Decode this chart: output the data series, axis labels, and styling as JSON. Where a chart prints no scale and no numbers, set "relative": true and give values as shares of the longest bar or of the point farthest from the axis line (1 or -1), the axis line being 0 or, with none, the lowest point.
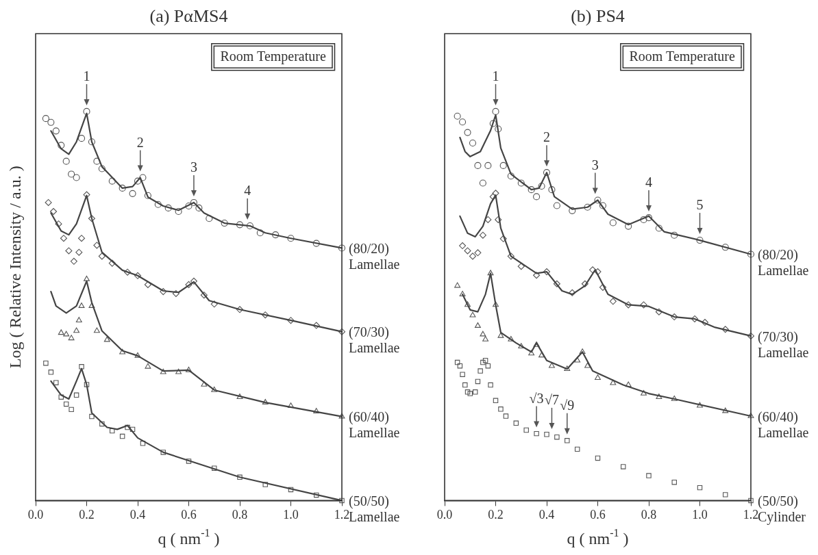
{
  "chart_data": [
    {
      "type": "line",
      "title": "(a) PαMS4",
      "xlabel": "q ( nm$^{-1}$ )",
      "ylabel": "Log ( Relative Intensity / a.u. )",
      "relative": true,
      "xlim": [
        0,
        1.2
      ],
      "xticks": [
        {
          "value": 0,
          "label": "0.0"
        },
        {
          "value": 0.2,
          "label": "0.2"
        },
        {
          "value": 0.4,
          "label": "0.4"
        },
        {
          "value": 0.6,
          "label": "0.6"
        },
        {
          "value": 0.8,
          "label": "0.8"
        },
        {
          "value": 1,
          "label": "1.0"
        },
        {
          "value": 1.2,
          "label": "1.2"
        }
      ],
      "series": [
        {
          "type": "scatter",
          "name": "(80/20) Lamellae",
          "color": "#555555",
          "marker": "circle",
          "x": [
            0.04,
            0.06,
            0.08,
            0.1,
            0.12,
            0.14,
            0.16,
            0.18,
            0.2,
            0.22,
            0.24,
            0.26,
            0.3,
            0.34,
            0.38,
            0.4,
            0.42,
            0.44,
            0.48,
            0.52,
            0.56,
            0.6,
            0.62,
            0.64,
            0.68,
            0.74,
            0.8,
            0.84,
            0.88,
            0.94,
            1.0,
            1.1,
            1.2
          ],
          "values": [
            0.982,
            0.972,
            0.95,
            0.913,
            0.872,
            0.839,
            0.83,
            0.931,
            1,
            0.922,
            0.872,
            0.853,
            0.821,
            0.803,
            0.789,
            0.821,
            0.83,
            0.784,
            0.761,
            0.752,
            0.743,
            0.757,
            0.766,
            0.752,
            0.725,
            0.713,
            0.709,
            0.706,
            0.688,
            0.683,
            0.674,
            0.661,
            0.649
          ]
        },
        {
          "type": "line",
          "color": "#444444",
          "marker": "none",
          "x": [
            0.06,
            0.1,
            0.13,
            0.16,
            0.19,
            0.2,
            0.22,
            0.26,
            0.34,
            0.38,
            0.41,
            0.44,
            0.5,
            0.56,
            0.62,
            0.66,
            0.74,
            0.84,
            0.9,
            1.0,
            1.2
          ],
          "values": [
            0.95,
            0.904,
            0.89,
            0.922,
            0.977,
            0.995,
            0.922,
            0.858,
            0.803,
            0.807,
            0.83,
            0.78,
            0.757,
            0.746,
            0.766,
            0.739,
            0.713,
            0.706,
            0.688,
            0.674,
            0.649
          ]
        },
        {
          "type": "scatter",
          "name": "(70/30) Lamellae",
          "color": "#555555",
          "marker": "diamond",
          "x": [
            0.05,
            0.07,
            0.09,
            0.11,
            0.13,
            0.15,
            0.17,
            0.18,
            0.2,
            0.22,
            0.24,
            0.26,
            0.3,
            0.36,
            0.4,
            0.44,
            0.5,
            0.55,
            0.6,
            0.62,
            0.66,
            0.7,
            0.8,
            0.9,
            1.0,
            1.1,
            1.2
          ],
          "values": [
            0.766,
            0.743,
            0.711,
            0.674,
            0.642,
            0.615,
            0.638,
            0.674,
            0.786,
            0.725,
            0.656,
            0.628,
            0.61,
            0.587,
            0.578,
            0.555,
            0.537,
            0.532,
            0.555,
            0.564,
            0.528,
            0.505,
            0.491,
            0.477,
            0.463,
            0.45,
            0.434
          ]
        },
        {
          "type": "line",
          "color": "#444444",
          "marker": "none",
          "x": [
            0.06,
            0.1,
            0.13,
            0.16,
            0.2,
            0.22,
            0.26,
            0.34,
            0.4,
            0.5,
            0.56,
            0.62,
            0.68,
            0.8,
            1.0,
            1.2
          ],
          "values": [
            0.739,
            0.693,
            0.683,
            0.711,
            0.784,
            0.725,
            0.638,
            0.592,
            0.578,
            0.539,
            0.535,
            0.562,
            0.514,
            0.491,
            0.463,
            0.434
          ]
        },
        {
          "type": "scatter",
          "name": "(60/40) Lamellae",
          "color": "#555555",
          "marker": "triangle",
          "x": [
            0.1,
            0.12,
            0.14,
            0.16,
            0.17,
            0.18,
            0.2,
            0.22,
            0.24,
            0.28,
            0.34,
            0.4,
            0.44,
            0.5,
            0.56,
            0.6,
            0.66,
            0.7,
            0.8,
            0.9,
            1.0,
            1.1,
            1.2
          ],
          "values": [
            0.431,
            0.427,
            0.417,
            0.436,
            0.463,
            0.5,
            0.569,
            0.5,
            0.436,
            0.413,
            0.381,
            0.372,
            0.344,
            0.33,
            0.33,
            0.335,
            0.298,
            0.284,
            0.266,
            0.252,
            0.243,
            0.229,
            0.216
          ]
        },
        {
          "type": "line",
          "color": "#444444",
          "marker": "none",
          "x": [
            0.06,
            0.08,
            0.12,
            0.16,
            0.2,
            0.22,
            0.26,
            0.34,
            0.4,
            0.5,
            0.6,
            0.7,
            0.9,
            1.2
          ],
          "values": [
            0.537,
            0.5,
            0.482,
            0.5,
            0.564,
            0.509,
            0.436,
            0.385,
            0.372,
            0.333,
            0.335,
            0.284,
            0.252,
            0.216
          ]
        },
        {
          "type": "scatter",
          "name": "(50/50) Lamellae",
          "color": "#555555",
          "marker": "square",
          "x": [
            0.04,
            0.06,
            0.08,
            0.1,
            0.12,
            0.14,
            0.16,
            0.18,
            0.2,
            0.22,
            0.26,
            0.3,
            0.34,
            0.36,
            0.38,
            0.42,
            0.5,
            0.6,
            0.7,
            0.8,
            0.9,
            1.0,
            1.1,
            1.2
          ],
          "values": [
            0.353,
            0.33,
            0.303,
            0.266,
            0.248,
            0.234,
            0.271,
            0.344,
            0.298,
            0.216,
            0.197,
            0.179,
            0.165,
            0.188,
            0.183,
            0.147,
            0.124,
            0.101,
            0.083,
            0.06,
            0.041,
            0.028,
            0.014,
            0
          ]
        },
        {
          "type": "line",
          "color": "#444444",
          "marker": "none",
          "x": [
            0.06,
            0.1,
            0.13,
            0.16,
            0.18,
            0.2,
            0.22,
            0.28,
            0.32,
            0.36,
            0.4,
            0.5,
            0.8,
            1.2
          ],
          "values": [
            0.307,
            0.271,
            0.261,
            0.307,
            0.339,
            0.298,
            0.225,
            0.188,
            0.183,
            0.193,
            0.161,
            0.124,
            0.06,
            0
          ]
        }
      ],
      "annotations": [
        "Room Temperature",
        {
          "text": "1",
          "x": 0.2,
          "y": 1
        },
        {
          "text": "2",
          "x": 0.41,
          "y": 0.83
        },
        {
          "text": "3",
          "x": 0.62,
          "y": 0.766
        },
        {
          "text": "4",
          "x": 0.83,
          "y": 0.706
        }
      ]
    },
    {
      "type": "line",
      "title": "(b) PS4",
      "xlabel": "q ( nm$^{-1}$ )",
      "relative": true,
      "xlim": [
        0,
        1.2
      ],
      "xticks": [
        {
          "value": 0,
          "label": "0.0"
        },
        {
          "value": 0.2,
          "label": "0.2"
        },
        {
          "value": 0.4,
          "label": "0.4"
        },
        {
          "value": 0.6,
          "label": "0.6"
        },
        {
          "value": 0.8,
          "label": "0.8"
        },
        {
          "value": 1,
          "label": "1.0"
        },
        {
          "value": 1.2,
          "label": "1.2"
        }
      ],
      "series": [
        {
          "type": "scatter",
          "name": "(80/20) Lamellae",
          "color": "#555555",
          "marker": "circle",
          "x": [
            0.05,
            0.07,
            0.09,
            0.11,
            0.13,
            0.15,
            0.17,
            0.19,
            0.2,
            0.21,
            0.23,
            0.26,
            0.3,
            0.34,
            0.36,
            0.38,
            0.4,
            0.42,
            0.44,
            0.5,
            0.56,
            0.6,
            0.62,
            0.66,
            0.72,
            0.78,
            0.8,
            0.84,
            0.9,
            1.0,
            1.1,
            1.2
          ],
          "values": [
            0.988,
            0.973,
            0.946,
            0.919,
            0.861,
            0.816,
            0.861,
            0.969,
            1,
            0.955,
            0.861,
            0.834,
            0.816,
            0.799,
            0.781,
            0.808,
            0.843,
            0.799,
            0.758,
            0.745,
            0.754,
            0.772,
            0.758,
            0.714,
            0.705,
            0.722,
            0.727,
            0.7,
            0.682,
            0.669,
            0.651,
            0.633
          ]
        },
        {
          "type": "line",
          "color": "#444444",
          "marker": "none",
          "x": [
            0.06,
            0.08,
            0.1,
            0.14,
            0.18,
            0.2,
            0.22,
            0.26,
            0.34,
            0.37,
            0.4,
            0.43,
            0.5,
            0.56,
            0.6,
            0.64,
            0.72,
            0.8,
            0.86,
            1.0,
            1.2
          ],
          "values": [
            0.933,
            0.897,
            0.884,
            0.897,
            0.951,
            0.991,
            0.906,
            0.839,
            0.799,
            0.803,
            0.843,
            0.781,
            0.749,
            0.754,
            0.772,
            0.736,
            0.709,
            0.731,
            0.691,
            0.669,
            0.633
          ]
        },
        {
          "type": "scatter",
          "name": "(70/30) Lamellae",
          "color": "#555555",
          "marker": "diamond",
          "x": [
            0.07,
            0.09,
            0.11,
            0.13,
            0.15,
            0.17,
            0.19,
            0.2,
            0.21,
            0.23,
            0.26,
            0.3,
            0.36,
            0.4,
            0.44,
            0.5,
            0.55,
            0.58,
            0.6,
            0.62,
            0.66,
            0.72,
            0.78,
            0.84,
            0.9,
            0.98,
            1.02,
            1.1,
            1.2
          ],
          "values": [
            0.655,
            0.642,
            0.628,
            0.637,
            0.682,
            0.722,
            0.781,
            0.79,
            0.722,
            0.673,
            0.628,
            0.602,
            0.579,
            0.588,
            0.557,
            0.534,
            0.557,
            0.593,
            0.588,
            0.548,
            0.512,
            0.503,
            0.503,
            0.485,
            0.472,
            0.467,
            0.458,
            0.44,
            0.423
          ]
        },
        {
          "type": "line",
          "color": "#444444",
          "marker": "none",
          "x": [
            0.06,
            0.09,
            0.12,
            0.15,
            0.18,
            0.2,
            0.22,
            0.26,
            0.36,
            0.4,
            0.46,
            0.5,
            0.55,
            0.59,
            0.64,
            0.72,
            0.8,
            0.9,
            0.98,
            1.06,
            1.2
          ],
          "values": [
            0.731,
            0.687,
            0.678,
            0.705,
            0.763,
            0.785,
            0.7,
            0.628,
            0.584,
            0.588,
            0.539,
            0.53,
            0.552,
            0.593,
            0.53,
            0.503,
            0.499,
            0.472,
            0.467,
            0.445,
            0.423
          ]
        },
        {
          "type": "scatter",
          "name": "(60/40) Lamellae",
          "color": "#555555",
          "marker": "triangle",
          "x": [
            0.05,
            0.07,
            0.09,
            0.11,
            0.13,
            0.15,
            0.16,
            0.18,
            0.2,
            0.22,
            0.26,
            0.3,
            0.34,
            0.36,
            0.38,
            0.42,
            0.48,
            0.52,
            0.54,
            0.56,
            0.6,
            0.66,
            0.72,
            0.78,
            0.84,
            0.9,
            1.0,
            1.1,
            1.2
          ],
          "values": [
            0.552,
            0.53,
            0.503,
            0.476,
            0.449,
            0.427,
            0.414,
            0.584,
            0.503,
            0.423,
            0.414,
            0.396,
            0.378,
            0.4,
            0.373,
            0.346,
            0.338,
            0.36,
            0.382,
            0.346,
            0.315,
            0.302,
            0.297,
            0.275,
            0.266,
            0.261,
            0.244,
            0.23,
            0.217
          ]
        },
        {
          "type": "line",
          "color": "#444444",
          "marker": "none",
          "x": [
            0.07,
            0.1,
            0.13,
            0.16,
            0.18,
            0.2,
            0.22,
            0.28,
            0.34,
            0.36,
            0.4,
            0.48,
            0.54,
            0.58,
            0.7,
            0.8,
            0.9,
            1.2
          ],
          "values": [
            0.53,
            0.49,
            0.485,
            0.53,
            0.584,
            0.503,
            0.432,
            0.405,
            0.382,
            0.405,
            0.36,
            0.338,
            0.382,
            0.333,
            0.297,
            0.275,
            0.261,
            0.217
          ]
        },
        {
          "type": "scatter",
          "name": "(50/50) Cylinder",
          "color": "#555555",
          "marker": "square",
          "x": [
            0.05,
            0.06,
            0.07,
            0.08,
            0.09,
            0.1,
            0.12,
            0.13,
            0.14,
            0.15,
            0.16,
            0.17,
            0.18,
            0.2,
            0.22,
            0.24,
            0.28,
            0.32,
            0.36,
            0.4,
            0.44,
            0.48,
            0.52,
            0.6,
            0.7,
            0.8,
            0.9,
            1.0,
            1.1,
            1.2
          ],
          "values": [
            0.355,
            0.346,
            0.324,
            0.297,
            0.279,
            0.275,
            0.279,
            0.306,
            0.333,
            0.355,
            0.36,
            0.346,
            0.297,
            0.257,
            0.235,
            0.217,
            0.199,
            0.181,
            0.172,
            0.17,
            0.163,
            0.154,
            0.132,
            0.109,
            0.087,
            0.064,
            0.047,
            0.033,
            0.015,
            0
          ]
        }
      ],
      "annotations": [
        "Room Temperature",
        {
          "text": "1",
          "x": 0.2,
          "y": 1
        },
        {
          "text": "2",
          "x": 0.4,
          "y": 0.843
        },
        {
          "text": "3",
          "x": 0.59,
          "y": 0.772
        },
        {
          "text": "4",
          "x": 0.8,
          "y": 0.727
        },
        {
          "text": "5",
          "x": 1.0,
          "y": 0.669
        },
        {
          "text": "√3",
          "x": 0.36,
          "y": 0.172
        },
        {
          "text": "√7",
          "x": 0.42,
          "y": 0.168
        },
        {
          "text": "√9",
          "x": 0.48,
          "y": 0.154
        }
      ]
    }
  ]
}
